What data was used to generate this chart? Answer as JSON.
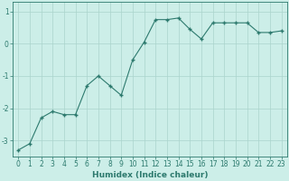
{
  "x": [
    0,
    1,
    2,
    3,
    4,
    5,
    6,
    7,
    8,
    9,
    10,
    11,
    12,
    13,
    14,
    15,
    16,
    17,
    18,
    19,
    20,
    21,
    22,
    23
  ],
  "y": [
    -3.3,
    -3.1,
    -2.3,
    -2.1,
    -2.2,
    -2.2,
    -1.3,
    -1.0,
    -1.3,
    -1.6,
    -0.5,
    0.05,
    0.75,
    0.75,
    0.8,
    0.45,
    0.15,
    0.65,
    0.65,
    0.65,
    0.65,
    0.35,
    0.35,
    0.4
  ],
  "line_color": "#2d7a6e",
  "marker": "+",
  "marker_size": 3,
  "bg_color": "#cceee8",
  "grid_color": "#aad4cc",
  "axis_color": "#2d7a6e",
  "xlabel": "Humidex (Indice chaleur)",
  "xlim": [
    -0.5,
    23.5
  ],
  "ylim": [
    -3.5,
    1.3
  ],
  "yticks": [
    -3,
    -2,
    -1,
    0,
    1
  ],
  "xticks": [
    0,
    1,
    2,
    3,
    4,
    5,
    6,
    7,
    8,
    9,
    10,
    11,
    12,
    13,
    14,
    15,
    16,
    17,
    18,
    19,
    20,
    21,
    22,
    23
  ],
  "font_color": "#2d7a6e",
  "font_size": 5.5,
  "label_font_size": 6.5
}
